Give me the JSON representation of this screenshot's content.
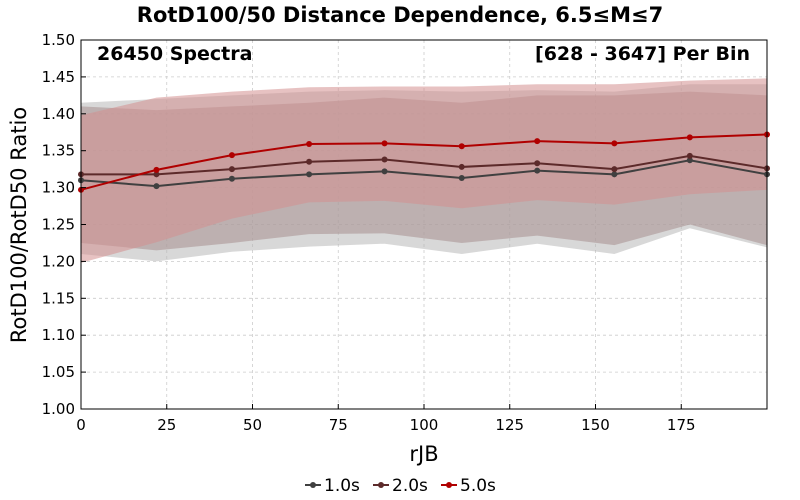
{
  "chart_data": {
    "type": "line",
    "title": "RotD100/50 Distance Dependence, 6.5≤M≤7",
    "annotations": {
      "left": "26450 Spectra",
      "right": "[628 - 3647] Per Bin"
    },
    "xlabel": "rJB",
    "ylabel": "RotD100/RotD50 Ratio",
    "xlim": [
      0,
      200
    ],
    "ylim": [
      1.0,
      1.5
    ],
    "xticks": [
      0,
      25,
      50,
      75,
      100,
      125,
      150,
      175
    ],
    "xtick_labels": [
      "0",
      "25",
      "50",
      "75",
      "100",
      "125",
      "150",
      "175"
    ],
    "yticks": [
      1.0,
      1.05,
      1.1,
      1.15,
      1.2,
      1.25,
      1.3,
      1.35,
      1.4,
      1.45,
      1.5
    ],
    "ytick_labels": [
      "1.00",
      "1.05",
      "1.10",
      "1.15",
      "1.20",
      "1.25",
      "1.30",
      "1.35",
      "1.40",
      "1.45",
      "1.50"
    ],
    "grid": true,
    "legend_position": "bottom-center",
    "x": [
      0,
      22,
      44,
      66.5,
      88.5,
      111,
      133,
      155.5,
      177.5,
      200
    ],
    "series": [
      {
        "name": "1.0s",
        "color": "#404040",
        "band_color": "#b8b8b8",
        "values": [
          1.31,
          1.302,
          1.312,
          1.318,
          1.322,
          1.313,
          1.323,
          1.318,
          1.337,
          1.318
        ],
        "upper": [
          1.415,
          1.42,
          1.425,
          1.43,
          1.432,
          1.43,
          1.432,
          1.43,
          1.44,
          1.44
        ],
        "lower": [
          1.21,
          1.2,
          1.213,
          1.22,
          1.224,
          1.21,
          1.224,
          1.21,
          1.245,
          1.219
        ]
      },
      {
        "name": "2.0s",
        "color": "#5c2a2a",
        "band_color": "#a89090",
        "values": [
          1.318,
          1.318,
          1.325,
          1.335,
          1.338,
          1.328,
          1.333,
          1.325,
          1.343,
          1.326
        ],
        "upper": [
          1.41,
          1.405,
          1.41,
          1.415,
          1.422,
          1.415,
          1.425,
          1.425,
          1.43,
          1.425
        ],
        "lower": [
          1.225,
          1.215,
          1.225,
          1.237,
          1.238,
          1.225,
          1.235,
          1.222,
          1.25,
          1.222
        ]
      },
      {
        "name": "5.0s",
        "color": "#b00000",
        "band_color": "#d49090",
        "values": [
          1.297,
          1.324,
          1.344,
          1.359,
          1.36,
          1.356,
          1.363,
          1.36,
          1.368,
          1.372
        ],
        "upper": [
          1.398,
          1.422,
          1.43,
          1.436,
          1.437,
          1.437,
          1.44,
          1.44,
          1.445,
          1.448
        ],
        "lower": [
          1.198,
          1.226,
          1.258,
          1.28,
          1.282,
          1.272,
          1.283,
          1.277,
          1.291,
          1.297
        ]
      }
    ]
  }
}
